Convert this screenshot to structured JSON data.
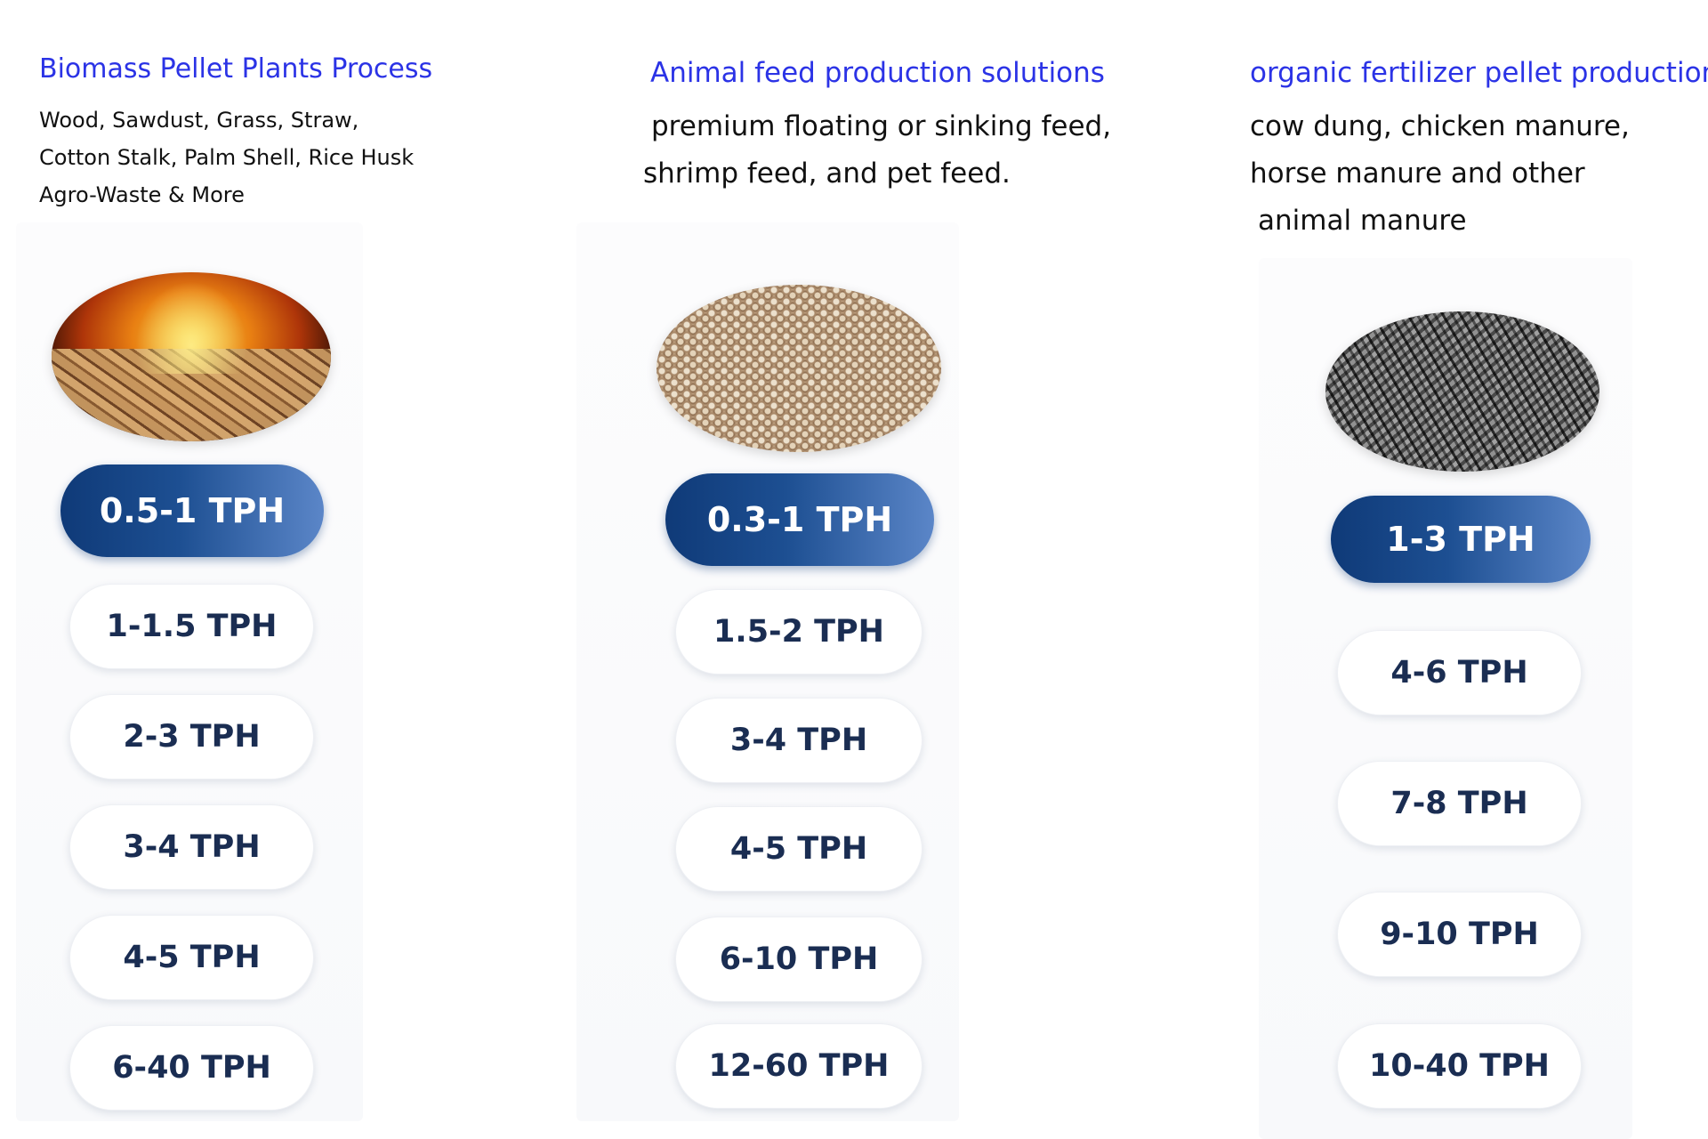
{
  "columns": [
    {
      "title": "Biomass Pellet Plants Process",
      "description": [
        "Wood, Sawdust, Grass, Straw,",
        "Cotton Stalk, Palm Shell, Rice Husk",
        "Agro-Waste & More"
      ],
      "image": "biomass-pellets-fire-image",
      "active_capacity": "0.5-1 TPH",
      "capacities": [
        "1-1.5 TPH",
        "2-3 TPH",
        "3-4 TPH",
        "4-5 TPH",
        "6-40 TPH"
      ]
    },
    {
      "title": "Animal feed production solutions",
      "description": [
        "premium floating or sinking feed,",
        "shrimp feed, and pet feed."
      ],
      "image": "animal-feed-pellets-image",
      "active_capacity": "0.3-1 TPH",
      "capacities": [
        "1.5-2 TPH",
        "3-4 TPH",
        "4-5 TPH",
        "6-10 TPH",
        "12-60 TPH"
      ]
    },
    {
      "title": "organic fertilizer pellet production",
      "description": [
        "cow dung, chicken manure,",
        "horse manure and other",
        "animal manure"
      ],
      "image": "fertilizer-pellets-image",
      "active_capacity": "1-3 TPH",
      "capacities": [
        "4-6 TPH",
        "7-8 TPH",
        "9-10 TPH",
        "10-40 TPH"
      ]
    }
  ],
  "colors": {
    "title": "#2b33e6",
    "active_pill_start": "#0f3a78",
    "active_pill_end": "#5b86c8",
    "pill_text": "#1a2d52"
  }
}
